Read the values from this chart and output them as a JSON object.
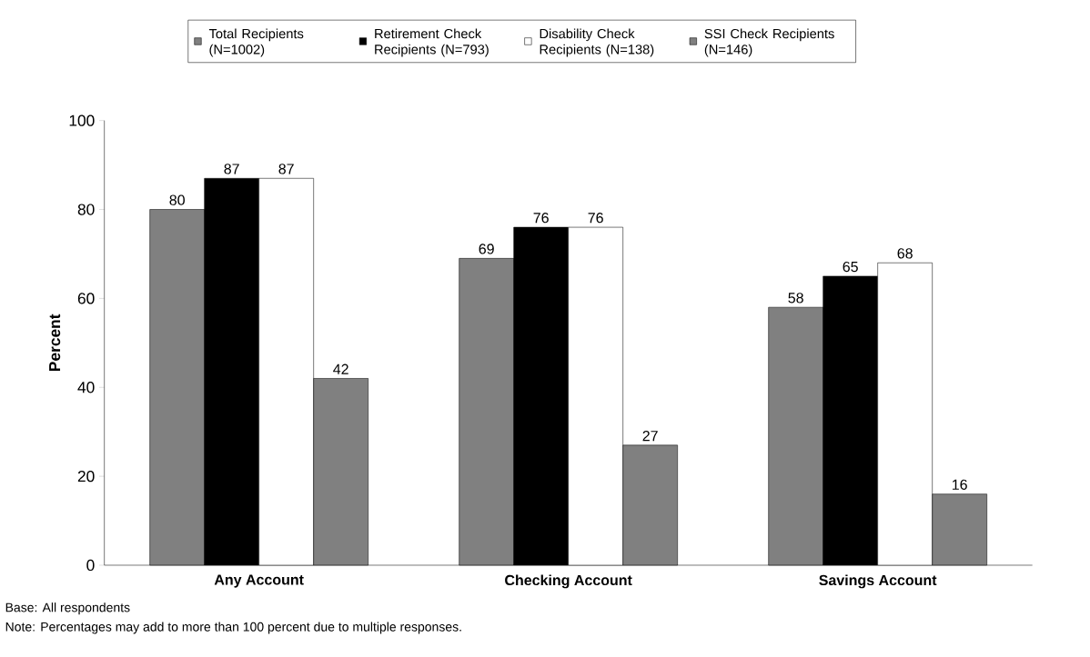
{
  "chart_data": {
    "type": "bar",
    "ylabel": "Percent",
    "categories": [
      "Any Account",
      "Checking Account",
      "Savings Account"
    ],
    "series": [
      {
        "name": "Total Recipients (N=1002)",
        "color": "#808080",
        "values": [
          80,
          69,
          58
        ]
      },
      {
        "name": "Retirement Check Recipients (N=793)",
        "color": "#000000",
        "values": [
          87,
          76,
          65
        ]
      },
      {
        "name": "Disability Check Recipients (N=138)",
        "color": "#ffffff",
        "values": [
          87,
          76,
          68
        ]
      },
      {
        "name": "SSI Check Recipients (N=146)",
        "color": "#808080",
        "values": [
          42,
          27,
          16
        ]
      }
    ],
    "ylim": [
      0,
      100
    ],
    "yticks": [
      0,
      20,
      40,
      60,
      80,
      100
    ],
    "grid": false,
    "legend": "top",
    "data_labels": true,
    "annotations": [
      "Base:  All respondents",
      "Note:  Percentages may add to more than 100 percent due to multiple responses."
    ]
  }
}
